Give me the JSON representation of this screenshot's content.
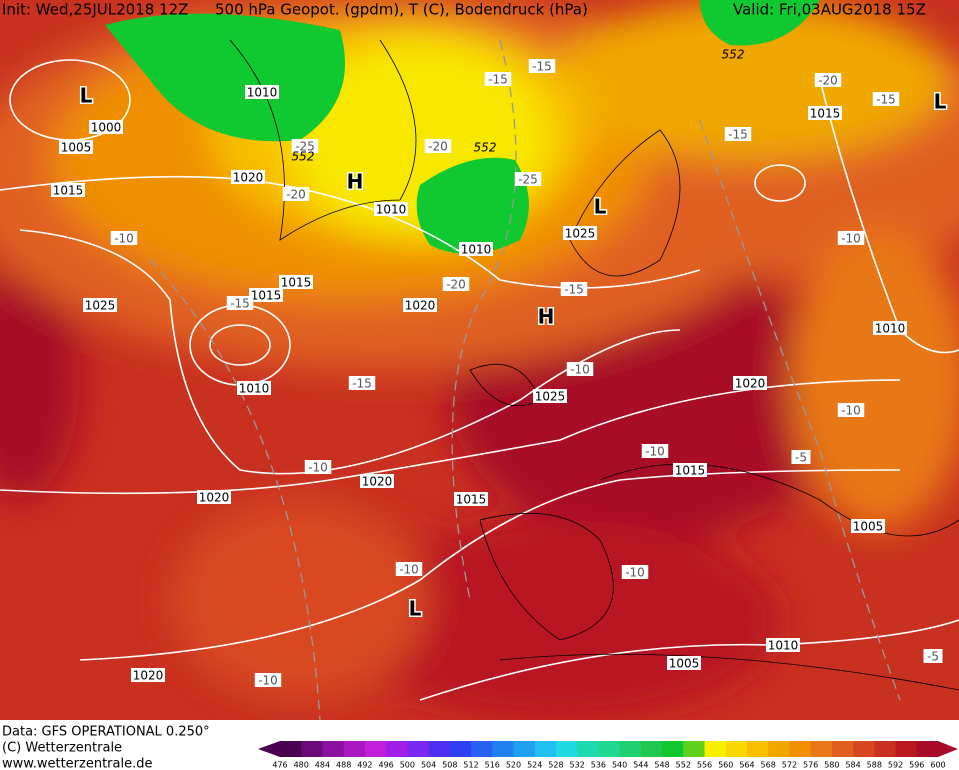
{
  "header": {
    "init": "Init: Wed,25JUL2018 12Z",
    "title": "500 hPa Geopot. (gpdm), T (C), Bodendruck (hPa)",
    "valid": "Valid: Fri,03AUG2018 15Z"
  },
  "footer": {
    "data": "Data: GFS OPERATIONAL 0.250°",
    "copyright": "(C) Wetterzentrale",
    "url": "www.wetterzentrale.de"
  },
  "colorbar": {
    "labels": [
      476,
      480,
      484,
      488,
      492,
      496,
      500,
      504,
      508,
      512,
      516,
      520,
      524,
      528,
      532,
      536,
      540,
      544,
      548,
      552,
      556,
      560,
      564,
      568,
      572,
      576,
      580,
      584,
      588,
      592,
      596,
      600
    ],
    "colors": [
      "#4a0050",
      "#6a0a78",
      "#8a10a0",
      "#a818c0",
      "#c020d8",
      "#a020e8",
      "#7828f0",
      "#5030f0",
      "#3040f0",
      "#2860f0",
      "#2080f0",
      "#20a0f0",
      "#20c0f0",
      "#20d8e0",
      "#20d8b0",
      "#20d890",
      "#20d070",
      "#20c850",
      "#10c830",
      "#60d020",
      "#f8f000",
      "#f8d800",
      "#f8c000",
      "#f0a800",
      "#f09000",
      "#e87818",
      "#e06020",
      "#d84820",
      "#c83020",
      "#b81820",
      "#a80c28"
    ]
  },
  "map": {
    "isobar_labels": [
      "1010",
      "1000",
      "1005",
      "1020",
      "1015",
      "1010",
      "1025",
      "1010",
      "1015",
      "1015",
      "1025",
      "1020",
      "1010",
      "1025",
      "1020",
      "1010",
      "1015",
      "1015",
      "1020",
      "1020",
      "1015",
      "1005",
      "1010",
      "1005",
      "1020"
    ],
    "temperature_labels": [
      "-15",
      "-15",
      "-20",
      "-15",
      "-15",
      "-25",
      "-20",
      "-20",
      "-25",
      "-10",
      "-10",
      "-15",
      "-15",
      "-20",
      "-10",
      "-15",
      "-10",
      "-10",
      "-5",
      "-10",
      "-10",
      "-10",
      "-10",
      "-5"
    ],
    "geopotential_labels": [
      "552",
      "552",
      "552"
    ],
    "pressure_centers": [
      "L",
      "H",
      "L",
      "H",
      "L",
      "L"
    ]
  }
}
